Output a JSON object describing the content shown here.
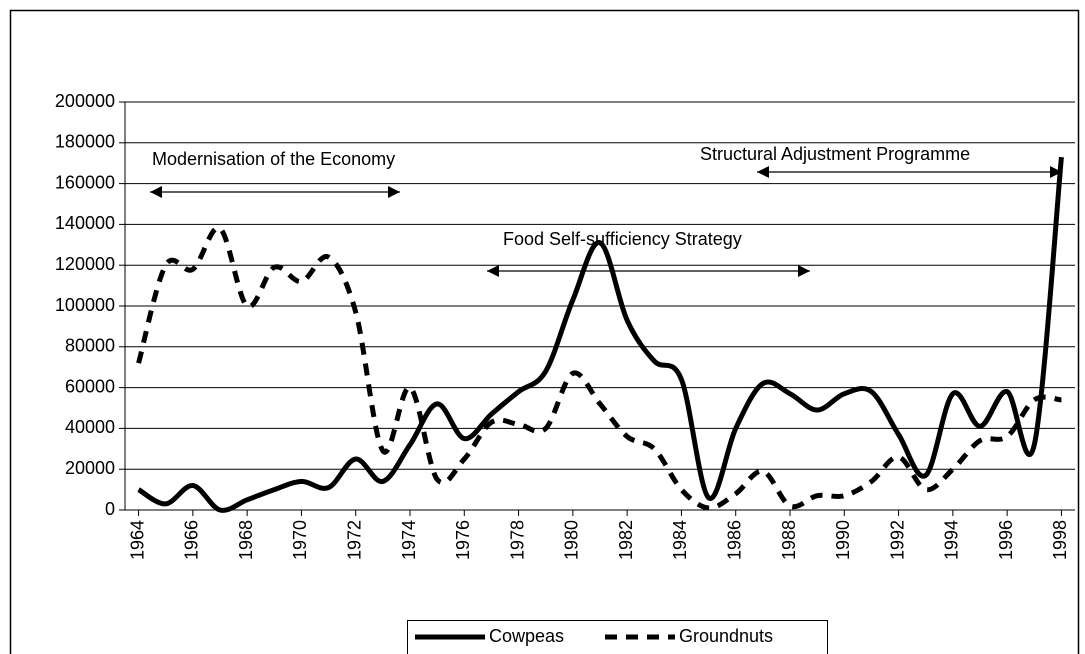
{
  "chart_data": {
    "type": "line",
    "x": [
      1964,
      1965,
      1966,
      1967,
      1968,
      1969,
      1970,
      1971,
      1972,
      1973,
      1974,
      1975,
      1976,
      1977,
      1978,
      1979,
      1980,
      1981,
      1982,
      1983,
      1984,
      1985,
      1986,
      1987,
      1988,
      1989,
      1990,
      1991,
      1992,
      1993,
      1994,
      1995,
      1996,
      1997,
      1998
    ],
    "xlim": [
      1963.5,
      1998.5
    ],
    "xticks": [
      1964,
      1966,
      1968,
      1970,
      1972,
      1974,
      1976,
      1978,
      1980,
      1982,
      1984,
      1986,
      1988,
      1990,
      1992,
      1994,
      1996,
      1998
    ],
    "ylim": [
      0,
      200000
    ],
    "yticks": [
      0,
      20000,
      40000,
      60000,
      80000,
      100000,
      120000,
      140000,
      160000,
      180000,
      200000
    ],
    "grid": true,
    "legend": "bottom",
    "series": [
      {
        "name": "Cowpeas",
        "color": "#000000",
        "dash": "solid",
        "values": [
          10000,
          3000,
          12000,
          0,
          5000,
          10000,
          14000,
          11000,
          25000,
          14000,
          32000,
          52000,
          35000,
          47000,
          58000,
          68000,
          103000,
          131000,
          93000,
          73000,
          64000,
          6000,
          40000,
          62000,
          57000,
          49000,
          57000,
          58000,
          37000,
          17000,
          57000,
          41000,
          58000,
          32000,
          173000
        ]
      },
      {
        "name": "Groundnuts",
        "color": "#000000",
        "dash": "dashed",
        "values": [
          72000,
          120000,
          118000,
          138000,
          100000,
          119000,
          112000,
          124000,
          97000,
          29000,
          60000,
          15000,
          25000,
          43000,
          42000,
          40000,
          67000,
          52000,
          36000,
          30000,
          10000,
          1000,
          8000,
          19000,
          2000,
          7000,
          7000,
          14000,
          26000,
          10000,
          20000,
          34000,
          36000,
          54000,
          54000
        ]
      }
    ],
    "annotations": [
      "Modernisation of the Economy",
      "Food Self-sufficiency Strategy",
      "Structural Adjustment Programme"
    ]
  }
}
